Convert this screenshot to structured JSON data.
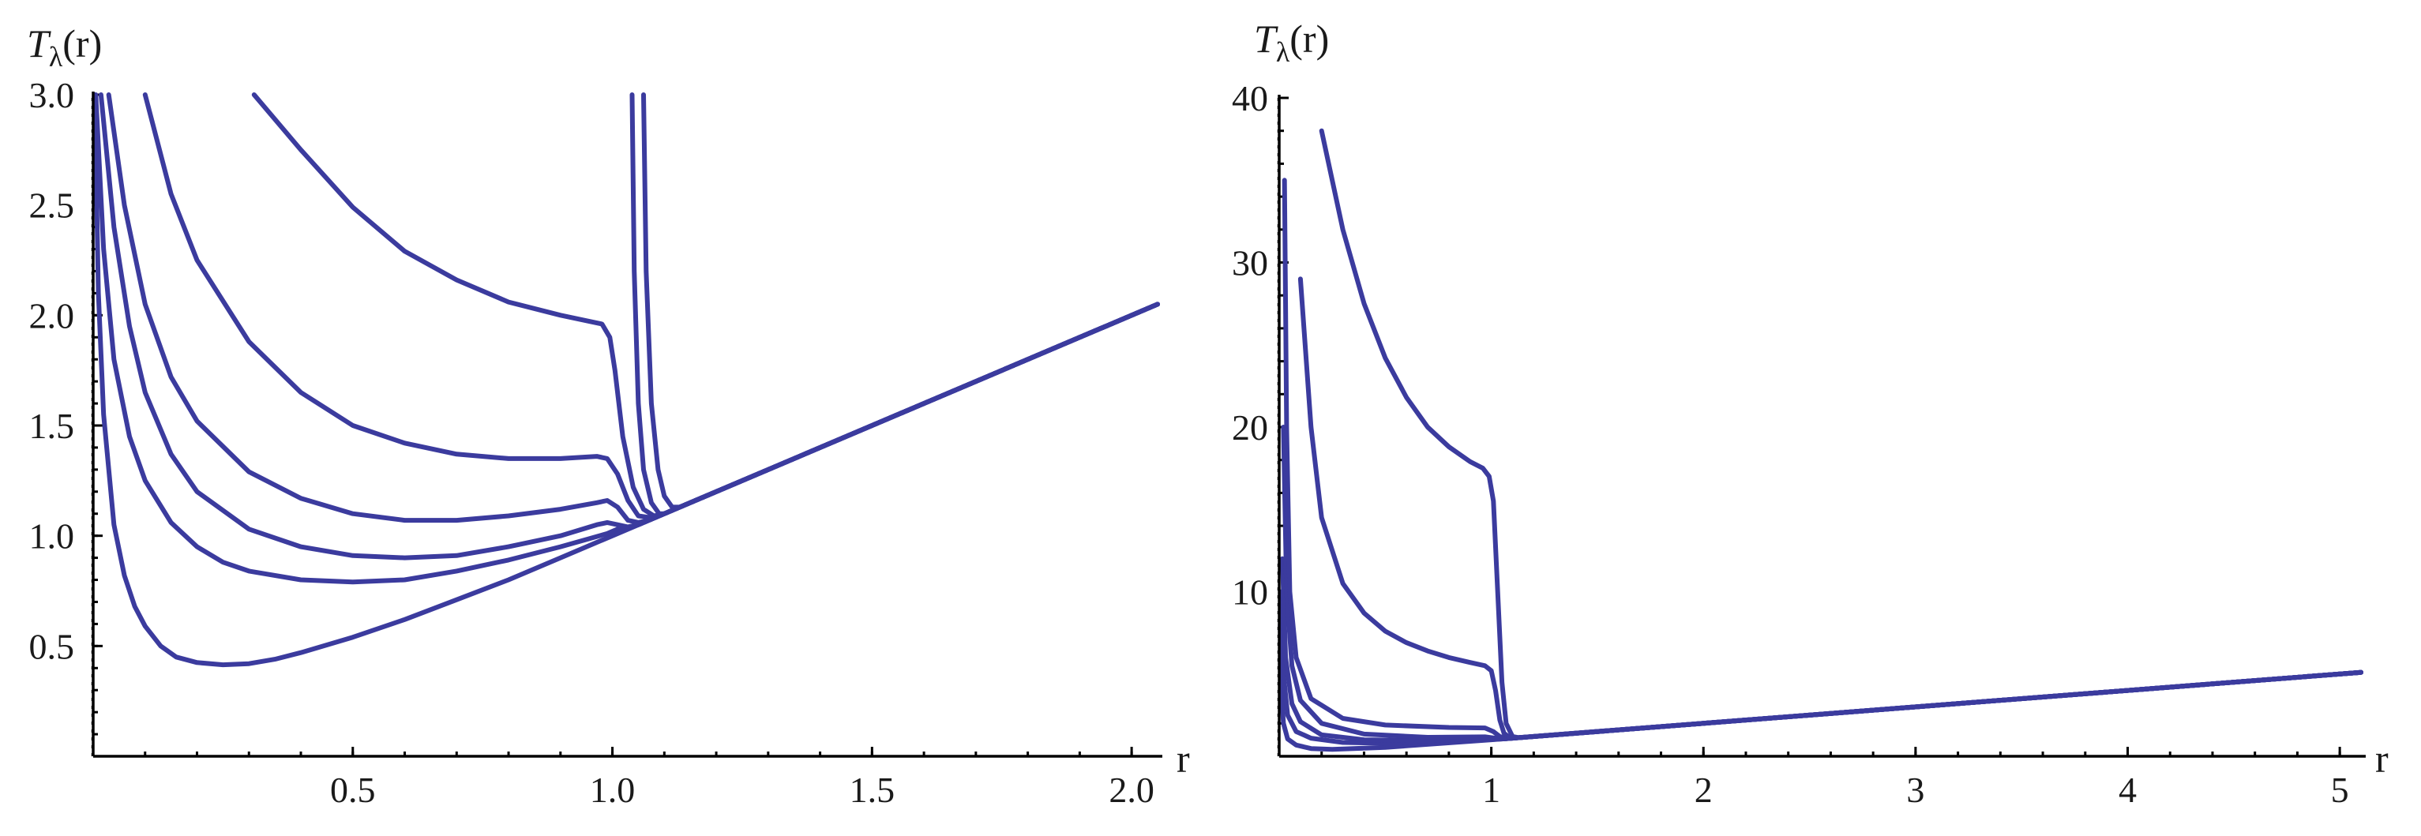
{
  "chart_data": [
    {
      "type": "line",
      "ylabel": "T_λ(r)",
      "ylabel_base": "T",
      "ylabel_sub": "λ",
      "ylabel_arg": "(r)",
      "xlabel": "r",
      "xlim": [
        0,
        2.05
      ],
      "ylim": [
        0,
        3.0
      ],
      "x_ticks": [
        "0.5",
        "1.0",
        "1.5",
        "2.0"
      ],
      "y_ticks": [
        "0.5",
        "1.0",
        "1.5",
        "2.0",
        "2.5",
        "3.0"
      ],
      "color": "#3b3b9e",
      "series": [
        {
          "points": [
            [
              0.003,
              3.0
            ],
            [
              0.01,
              2.1
            ],
            [
              0.02,
              1.55
            ],
            [
              0.04,
              1.05
            ],
            [
              0.06,
              0.82
            ],
            [
              0.08,
              0.68
            ],
            [
              0.1,
              0.59
            ],
            [
              0.13,
              0.5
            ],
            [
              0.16,
              0.45
            ],
            [
              0.2,
              0.425
            ],
            [
              0.25,
              0.415
            ],
            [
              0.3,
              0.42
            ],
            [
              0.35,
              0.44
            ],
            [
              0.4,
              0.47
            ],
            [
              0.5,
              0.54
            ],
            [
              0.6,
              0.62
            ],
            [
              0.7,
              0.71
            ],
            [
              0.8,
              0.8
            ],
            [
              0.9,
              0.9
            ],
            [
              1.0,
              1.0
            ],
            [
              1.5,
              1.5
            ],
            [
              2.05,
              2.05
            ]
          ]
        },
        {
          "points": [
            [
              0.005,
              3.0
            ],
            [
              0.02,
              2.3
            ],
            [
              0.04,
              1.8
            ],
            [
              0.07,
              1.45
            ],
            [
              0.1,
              1.25
            ],
            [
              0.15,
              1.06
            ],
            [
              0.2,
              0.95
            ],
            [
              0.25,
              0.88
            ],
            [
              0.3,
              0.84
            ],
            [
              0.4,
              0.8
            ],
            [
              0.5,
              0.79
            ],
            [
              0.6,
              0.8
            ],
            [
              0.7,
              0.84
            ],
            [
              0.8,
              0.89
            ],
            [
              0.9,
              0.95
            ],
            [
              0.96,
              0.99
            ],
            [
              0.99,
              1.01
            ],
            [
              1.01,
              1.03
            ],
            [
              1.05,
              1.05
            ],
            [
              1.5,
              1.5
            ],
            [
              2.05,
              2.05
            ]
          ]
        },
        {
          "points": [
            [
              0.015,
              3.0
            ],
            [
              0.04,
              2.4
            ],
            [
              0.07,
              1.95
            ],
            [
              0.1,
              1.65
            ],
            [
              0.15,
              1.37
            ],
            [
              0.2,
              1.2
            ],
            [
              0.3,
              1.03
            ],
            [
              0.4,
              0.95
            ],
            [
              0.5,
              0.91
            ],
            [
              0.6,
              0.9
            ],
            [
              0.7,
              0.91
            ],
            [
              0.8,
              0.95
            ],
            [
              0.9,
              1.0
            ],
            [
              0.97,
              1.05
            ],
            [
              0.99,
              1.06
            ],
            [
              1.01,
              1.05
            ],
            [
              1.03,
              1.04
            ],
            [
              1.05,
              1.05
            ],
            [
              2.05,
              2.05
            ]
          ]
        },
        {
          "points": [
            [
              0.03,
              3.0
            ],
            [
              0.06,
              2.5
            ],
            [
              0.1,
              2.05
            ],
            [
              0.15,
              1.72
            ],
            [
              0.2,
              1.52
            ],
            [
              0.3,
              1.29
            ],
            [
              0.4,
              1.17
            ],
            [
              0.5,
              1.1
            ],
            [
              0.6,
              1.07
            ],
            [
              0.7,
              1.07
            ],
            [
              0.8,
              1.09
            ],
            [
              0.9,
              1.12
            ],
            [
              0.97,
              1.15
            ],
            [
              0.99,
              1.16
            ],
            [
              1.01,
              1.13
            ],
            [
              1.03,
              1.07
            ],
            [
              1.05,
              1.06
            ],
            [
              1.07,
              1.07
            ],
            [
              2.05,
              2.05
            ]
          ]
        },
        {
          "points": [
            [
              0.1,
              3.0
            ],
            [
              0.15,
              2.55
            ],
            [
              0.2,
              2.25
            ],
            [
              0.3,
              1.88
            ],
            [
              0.4,
              1.65
            ],
            [
              0.5,
              1.5
            ],
            [
              0.6,
              1.42
            ],
            [
              0.7,
              1.37
            ],
            [
              0.8,
              1.35
            ],
            [
              0.9,
              1.35
            ],
            [
              0.97,
              1.36
            ],
            [
              0.99,
              1.35
            ],
            [
              1.01,
              1.28
            ],
            [
              1.03,
              1.16
            ],
            [
              1.05,
              1.09
            ],
            [
              1.08,
              1.08
            ],
            [
              2.05,
              2.05
            ]
          ]
        },
        {
          "points": [
            [
              0.31,
              3.0
            ],
            [
              0.4,
              2.75
            ],
            [
              0.5,
              2.49
            ],
            [
              0.6,
              2.29
            ],
            [
              0.7,
              2.16
            ],
            [
              0.8,
              2.06
            ],
            [
              0.9,
              2.0
            ],
            [
              0.96,
              1.97
            ],
            [
              0.98,
              1.96
            ],
            [
              0.995,
              1.9
            ],
            [
              1.005,
              1.75
            ],
            [
              1.02,
              1.45
            ],
            [
              1.04,
              1.22
            ],
            [
              1.06,
              1.12
            ],
            [
              1.08,
              1.09
            ],
            [
              1.1,
              1.1
            ],
            [
              2.05,
              2.05
            ]
          ]
        },
        {
          "points": [
            [
              1.038,
              3.0
            ],
            [
              1.042,
              2.2
            ],
            [
              1.05,
              1.6
            ],
            [
              1.06,
              1.3
            ],
            [
              1.075,
              1.15
            ],
            [
              1.09,
              1.1
            ],
            [
              1.1,
              1.1
            ],
            [
              2.05,
              2.05
            ]
          ]
        },
        {
          "points": [
            [
              1.06,
              3.0
            ],
            [
              1.065,
              2.2
            ],
            [
              1.075,
              1.6
            ],
            [
              1.088,
              1.3
            ],
            [
              1.1,
              1.18
            ],
            [
              1.115,
              1.13
            ],
            [
              1.13,
              1.13
            ],
            [
              2.05,
              2.05
            ]
          ]
        }
      ]
    },
    {
      "type": "line",
      "ylabel": "T_λ(r)",
      "ylabel_base": "T",
      "ylabel_sub": "λ",
      "ylabel_arg": "(r)",
      "xlabel": "r",
      "xlim": [
        0,
        5.1
      ],
      "ylim": [
        0,
        40
      ],
      "x_ticks": [
        "1",
        "2",
        "3",
        "4",
        "5"
      ],
      "y_ticks": [
        "10",
        "20",
        "30",
        "40"
      ],
      "color": "#3b3b9e",
      "series": [
        {
          "points": [
            [
              0.005,
              8.0
            ],
            [
              0.01,
              4.0
            ],
            [
              0.02,
              2.0
            ],
            [
              0.04,
              1.05
            ],
            [
              0.08,
              0.68
            ],
            [
              0.15,
              0.47
            ],
            [
              0.25,
              0.42
            ],
            [
              0.5,
              0.54
            ],
            [
              1.0,
              1.0
            ],
            [
              5.1,
              5.1
            ]
          ]
        },
        {
          "points": [
            [
              0.01,
              10.0
            ],
            [
              0.02,
              5.0
            ],
            [
              0.04,
              2.5
            ],
            [
              0.08,
              1.5
            ],
            [
              0.15,
              1.1
            ],
            [
              0.3,
              0.84
            ],
            [
              0.5,
              0.79
            ],
            [
              0.8,
              0.89
            ],
            [
              1.0,
              1.02
            ],
            [
              1.05,
              1.05
            ],
            [
              5.1,
              5.1
            ]
          ]
        },
        {
          "points": [
            [
              0.015,
              12.0
            ],
            [
              0.03,
              6.0
            ],
            [
              0.06,
              3.2
            ],
            [
              0.1,
              2.1
            ],
            [
              0.2,
              1.3
            ],
            [
              0.4,
              1.0
            ],
            [
              0.7,
              0.95
            ],
            [
              0.97,
              1.1
            ],
            [
              1.02,
              1.06
            ],
            [
              1.06,
              1.06
            ],
            [
              5.1,
              5.1
            ]
          ]
        },
        {
          "points": [
            [
              0.02,
              20.0
            ],
            [
              0.035,
              10.0
            ],
            [
              0.06,
              5.5
            ],
            [
              0.1,
              3.4
            ],
            [
              0.2,
              2.0
            ],
            [
              0.4,
              1.35
            ],
            [
              0.7,
              1.15
            ],
            [
              0.97,
              1.18
            ],
            [
              1.02,
              1.1
            ],
            [
              1.07,
              1.07
            ],
            [
              5.1,
              5.1
            ]
          ]
        },
        {
          "points": [
            [
              0.025,
              35.0
            ],
            [
              0.035,
              20.0
            ],
            [
              0.05,
              10.0
            ],
            [
              0.08,
              6.0
            ],
            [
              0.15,
              3.5
            ],
            [
              0.3,
              2.3
            ],
            [
              0.5,
              1.9
            ],
            [
              0.8,
              1.75
            ],
            [
              0.97,
              1.72
            ],
            [
              1.01,
              1.5
            ],
            [
              1.04,
              1.2
            ],
            [
              1.08,
              1.08
            ],
            [
              5.1,
              5.1
            ]
          ]
        },
        {
          "points": [
            [
              0.1,
              29.0
            ],
            [
              0.15,
              20.0
            ],
            [
              0.2,
              14.5
            ],
            [
              0.3,
              10.5
            ],
            [
              0.4,
              8.7
            ],
            [
              0.5,
              7.6
            ],
            [
              0.6,
              6.9
            ],
            [
              0.7,
              6.4
            ],
            [
              0.8,
              6.0
            ],
            [
              0.9,
              5.7
            ],
            [
              0.97,
              5.5
            ],
            [
              1.0,
              5.2
            ],
            [
              1.02,
              4.0
            ],
            [
              1.04,
              2.2
            ],
            [
              1.06,
              1.4
            ],
            [
              1.09,
              1.1
            ],
            [
              5.1,
              5.1
            ]
          ]
        },
        {
          "points": [
            [
              0.2,
              38.0
            ],
            [
              0.3,
              32.0
            ],
            [
              0.4,
              27.5
            ],
            [
              0.5,
              24.2
            ],
            [
              0.6,
              21.8
            ],
            [
              0.7,
              20.0
            ],
            [
              0.8,
              18.8
            ],
            [
              0.9,
              17.9
            ],
            [
              0.96,
              17.5
            ],
            [
              0.99,
              17.0
            ],
            [
              1.01,
              15.5
            ],
            [
              1.03,
              10.0
            ],
            [
              1.05,
              4.5
            ],
            [
              1.07,
              2.0
            ],
            [
              1.1,
              1.2
            ],
            [
              1.13,
              1.13
            ],
            [
              5.1,
              5.1
            ]
          ]
        }
      ]
    }
  ]
}
